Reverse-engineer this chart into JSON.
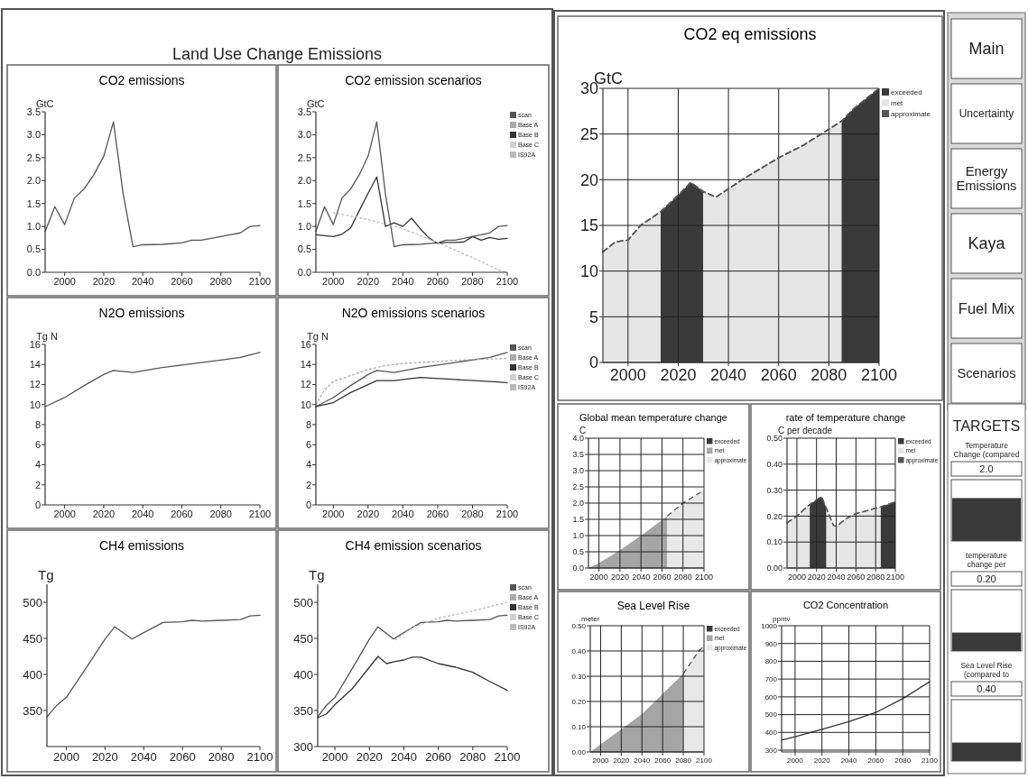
{
  "chart_data": [
    {
      "type": "other",
      "title": "Land Use Change Emissions"
    },
    {
      "type": "line",
      "title": "CO2 emissions",
      "ylabel": "GtC",
      "xlim": [
        1990,
        2100
      ],
      "xticks": [
        2000,
        2020,
        2040,
        2060,
        2080,
        2100
      ],
      "ylim": [
        0,
        3.5
      ],
      "yticks": [
        {
          "value": 0,
          "label": "0.0"
        },
        0.5,
        {
          "value": 1,
          "label": "1.0"
        },
        1.5,
        {
          "value": 2,
          "label": "2.0"
        },
        2.5,
        {
          "value": 3,
          "label": "3.0"
        },
        3.5
      ],
      "series": [
        {
          "color": "#555555",
          "x": [
            1990,
            1995,
            2000,
            2005,
            2010,
            2015,
            2020,
            2025,
            2030,
            2035,
            2040,
            2050,
            2060,
            2065,
            2070,
            2080,
            2090,
            2095,
            2100
          ],
          "values": [
            0.89,
            1.43,
            1.04,
            1.62,
            1.82,
            2.13,
            2.53,
            3.28,
            1.7,
            0.56,
            0.6,
            0.61,
            0.64,
            0.7,
            0.7,
            0.78,
            0.86,
            1.0,
            1.02
          ]
        }
      ]
    },
    {
      "type": "line",
      "title": "CO2 emission scenarios",
      "ylabel": "GtC",
      "legend": "top right",
      "xlim": [
        1990,
        2100
      ],
      "xticks": [
        2000,
        2020,
        2040,
        2060,
        2080,
        2100
      ],
      "ylim": [
        0,
        3.5
      ],
      "yticks": [
        {
          "value": 0,
          "label": "0.0"
        },
        0.5,
        {
          "value": 1,
          "label": "1.0"
        },
        1.5,
        {
          "value": 2,
          "label": "2.0"
        },
        2.5,
        {
          "value": 3,
          "label": "3.0"
        },
        3.5
      ],
      "series": [
        {
          "name": "scan",
          "color": "#555555",
          "x": [
            1990,
            1995,
            2000,
            2005,
            2010,
            2015,
            2020,
            2025,
            2030,
            2035,
            2040,
            2050,
            2060,
            2065,
            2070,
            2080,
            2090,
            2095,
            2100
          ],
          "values": [
            0.89,
            1.43,
            1.04,
            1.62,
            1.82,
            2.13,
            2.53,
            3.28,
            1.7,
            0.56,
            0.6,
            0.61,
            0.64,
            0.7,
            0.7,
            0.78,
            0.86,
            1.0,
            1.02
          ]
        },
        {
          "name": "Base A",
          "color": "#aaaaaa"
        },
        {
          "name": "Base B",
          "color": "#333333",
          "x": [
            1990,
            2000,
            2005,
            2010,
            2015,
            2020,
            2025,
            2030,
            2035,
            2040,
            2045,
            2050,
            2055,
            2060,
            2065,
            2070,
            2075,
            2080,
            2085,
            2090,
            2095,
            2100
          ],
          "values": [
            0.82,
            0.78,
            0.83,
            0.97,
            1.35,
            1.72,
            2.08,
            1.0,
            1.08,
            1.0,
            1.18,
            0.95,
            0.75,
            0.63,
            0.65,
            0.65,
            0.66,
            0.78,
            0.7,
            0.76,
            0.72,
            0.74
          ]
        },
        {
          "name": "Base C",
          "color": "#d0d0d0"
        },
        {
          "name": "IS92A",
          "color": "#bbbbbb",
          "line_style": "dotted",
          "x": [
            2000,
            2020,
            2040,
            2060,
            2080,
            2095,
            2100
          ],
          "values": [
            1.3,
            1.15,
            0.95,
            0.65,
            0.32,
            0.05,
            0.0
          ]
        }
      ]
    },
    {
      "type": "line",
      "title": "N2O emissions",
      "ylabel": "Tg N",
      "xlim": [
        1990,
        2100
      ],
      "xticks": [
        2000,
        2020,
        2040,
        2060,
        2080,
        2100
      ],
      "ylim": [
        0,
        16
      ],
      "yticks": [
        0,
        2,
        4,
        6,
        8,
        10,
        12,
        14,
        16
      ],
      "series": [
        {
          "color": "#555555",
          "x": [
            1990,
            2000,
            2010,
            2020,
            2025,
            2035,
            2050,
            2070,
            2090,
            2100
          ],
          "values": [
            9.8,
            10.7,
            11.9,
            13.0,
            13.4,
            13.2,
            13.7,
            14.2,
            14.7,
            15.2
          ]
        }
      ]
    },
    {
      "type": "line",
      "title": "N2O emissions scenarios",
      "ylabel": "Tg N",
      "legend": "top right",
      "xlim": [
        1990,
        2100
      ],
      "xticks": [
        2000,
        2020,
        2040,
        2060,
        2080,
        2100
      ],
      "ylim": [
        0,
        16
      ],
      "yticks": [
        0,
        2,
        4,
        6,
        8,
        10,
        12,
        14,
        16
      ],
      "series": [
        {
          "name": "scan",
          "color": "#555555",
          "x": [
            1990,
            2000,
            2010,
            2020,
            2025,
            2035,
            2050,
            2070,
            2090,
            2100
          ],
          "values": [
            9.8,
            10.7,
            11.9,
            13.0,
            13.4,
            13.2,
            13.7,
            14.2,
            14.7,
            15.2
          ]
        },
        {
          "name": "Base A",
          "color": "#aaaaaa",
          "line_style": "dotted",
          "x": [
            1990,
            1995,
            2000,
            2010,
            2020,
            2030,
            2040,
            2060,
            2080,
            2100
          ],
          "values": [
            10.0,
            11.5,
            12.3,
            12.9,
            13.5,
            13.9,
            14.1,
            14.3,
            14.5,
            14.6
          ]
        },
        {
          "name": "Base B",
          "color": "#333333",
          "x": [
            1990,
            2000,
            2010,
            2025,
            2035,
            2050,
            2070,
            2090,
            2100
          ],
          "values": [
            9.8,
            10.2,
            11.2,
            12.4,
            12.4,
            12.7,
            12.5,
            12.3,
            12.2
          ]
        },
        {
          "name": "Base C",
          "color": "#d0d0d0"
        },
        {
          "name": "IS92A",
          "color": "#bbbbbb"
        }
      ]
    },
    {
      "type": "line",
      "title": "CH4 emissions",
      "ylabel": "Tg",
      "xlim": [
        1990,
        2100
      ],
      "xticks": [
        2000,
        2020,
        2040,
        2060,
        2080,
        2100
      ],
      "ylim": [
        300,
        525
      ],
      "yticks": [
        350,
        400,
        450,
        500
      ],
      "series": [
        {
          "color": "#555555",
          "x": [
            1990,
            1995,
            2000,
            2010,
            2020,
            2025,
            2034,
            2040,
            2050,
            2060,
            2065,
            2070,
            2080,
            2090,
            2095,
            2100
          ],
          "values": [
            341,
            357,
            368,
            408,
            449,
            466,
            449,
            458,
            472,
            473,
            475,
            474,
            475,
            476,
            481,
            482
          ]
        }
      ]
    },
    {
      "type": "line",
      "title": "CH4 emission scenarios",
      "ylabel": "Tg",
      "legend": "top right",
      "xlim": [
        1990,
        2100
      ],
      "xticks": [
        2000,
        2020,
        2040,
        2060,
        2080,
        2100
      ],
      "ylim": [
        300,
        525
      ],
      "yticks": [
        300,
        350,
        400,
        450,
        500
      ],
      "series": [
        {
          "name": "scan",
          "color": "#555555",
          "x": [
            1990,
            1995,
            2000,
            2010,
            2020,
            2025,
            2034,
            2040,
            2050,
            2060,
            2065,
            2070,
            2080,
            2090,
            2095,
            2100
          ],
          "values": [
            341,
            357,
            368,
            408,
            449,
            466,
            449,
            458,
            472,
            473,
            475,
            474,
            475,
            476,
            481,
            482
          ]
        },
        {
          "name": "Base A",
          "color": "#aaaaaa"
        },
        {
          "name": "Base B",
          "color": "#333333",
          "x": [
            1990,
            1995,
            2000,
            2010,
            2020,
            2025,
            2030,
            2035,
            2040,
            2045,
            2050,
            2060,
            2070,
            2080,
            2090,
            2100
          ],
          "values": [
            340,
            345,
            358,
            380,
            410,
            425,
            415,
            418,
            420,
            424,
            424,
            415,
            410,
            403,
            390,
            378
          ]
        },
        {
          "name": "Base C",
          "color": "#d0d0d0"
        },
        {
          "name": "IS92A",
          "color": "#bbbbbb",
          "line_style": "dotted",
          "x": [
            2035,
            2045,
            2060,
            2080,
            2100
          ],
          "values": [
            448,
            465,
            478,
            488,
            500
          ]
        }
      ]
    },
    {
      "type": "area",
      "title": "CO2 eq emissions",
      "ylabel": "GtC",
      "legend": "top right",
      "grid": true,
      "xlim": [
        1990,
        2100
      ],
      "xticks": [
        2000,
        2020,
        2040,
        2060,
        2080,
        2100
      ],
      "ylim": [
        0,
        30
      ],
      "yticks": [
        0,
        5,
        10,
        15,
        20,
        25,
        30
      ],
      "series": [
        {
          "name": "exceeded",
          "color": "#3a3a3a",
          "x": [
            2013,
            2020,
            2025,
            2030,
            2060,
            2085,
            2090,
            2100
          ],
          "values": [
            16.5,
            18.3,
            19.7,
            18.7,
            null,
            26.4,
            27.8,
            30
          ]
        },
        {
          "name": "met",
          "color": "#e6e6e6",
          "x": [
            1990,
            1995,
            2000,
            2005,
            2013,
            2020,
            2030,
            2035,
            2046,
            2060,
            2070,
            2085
          ],
          "values": [
            12.1,
            13.2,
            13.4,
            15.0,
            16.5,
            null,
            18.7,
            18.1,
            20.1,
            22.4,
            23.8,
            26.4
          ]
        },
        {
          "name": "approximate",
          "type": "line",
          "line_style": "dashed",
          "color": "#555555",
          "x": [
            1990,
            1995,
            2000,
            2005,
            2013,
            2020,
            2025,
            2030,
            2035,
            2046,
            2060,
            2070,
            2085,
            2090,
            2100
          ],
          "values": [
            12.1,
            13.2,
            13.4,
            15.0,
            16.5,
            18.3,
            19.7,
            18.7,
            18.1,
            20.1,
            22.4,
            23.8,
            26.4,
            27.8,
            30
          ]
        }
      ]
    },
    {
      "type": "area",
      "title": "Global mean temperature change",
      "ylabel": "C",
      "legend": "top right",
      "grid": true,
      "xlim": [
        1990,
        2100
      ],
      "xticks": [
        2000,
        2020,
        2040,
        2060,
        2080,
        2100
      ],
      "ylim": [
        0,
        4
      ],
      "yticks": [
        {
          "value": 0,
          "label": "0.0"
        },
        0.5,
        {
          "value": 1,
          "label": "1.0"
        },
        1.5,
        {
          "value": 2,
          "label": "2.0"
        },
        2.5,
        {
          "value": 3,
          "label": "3.0"
        },
        3.5,
        {
          "value": 4,
          "label": "4.0"
        }
      ],
      "series": [
        {
          "name": "exceeded",
          "color": "#3a3a3a"
        },
        {
          "name": "met",
          "color": "#a5a5a5",
          "x": [
            1990,
            2000,
            2020,
            2040,
            2065
          ],
          "values": [
            0,
            0.15,
            0.55,
            1.0,
            1.6
          ]
        },
        {
          "name": "approximate",
          "line_style": "dashed",
          "color": "#e8e8e8",
          "x": [
            2065,
            2080,
            2100
          ],
          "values": [
            1.6,
            2.0,
            2.4
          ]
        }
      ]
    },
    {
      "type": "area",
      "title": "rate of temperature change",
      "ylabel": "C per decade",
      "legend": "top right",
      "grid": true,
      "xlim": [
        1990,
        2100
      ],
      "xticks": [
        2000,
        2020,
        2040,
        2060,
        2080,
        2100
      ],
      "ylim": [
        0,
        0.5
      ],
      "yticks": [
        {
          "value": 0,
          "label": "0.00"
        },
        {
          "value": 0.1,
          "label": "0.10"
        },
        {
          "value": 0.2,
          "label": "0.20"
        },
        {
          "value": 0.3,
          "label": "0.30"
        },
        {
          "value": 0.4,
          "label": "0.40"
        },
        {
          "value": 0.5,
          "label": "0.50"
        }
      ],
      "series": [
        {
          "name": "exceeded",
          "color": "#3a3a3a",
          "x": [
            2013,
            2025,
            2030,
            2060,
            2085,
            2100
          ],
          "values": [
            0.245,
            0.275,
            0.23,
            null,
            0.235,
            0.255
          ]
        },
        {
          "name": "met",
          "color": "#e6e6e6",
          "x": [
            1990,
            2000,
            2013,
            2020,
            2030,
            2037,
            2040,
            2050,
            2060,
            2085
          ],
          "values": [
            0.174,
            0.2,
            0.245,
            null,
            0.23,
            0.165,
            0.16,
            0.19,
            0.21,
            0.235
          ]
        },
        {
          "name": "approximate",
          "type": "line",
          "line_style": "dashed",
          "color": "#555555",
          "x": [
            1990,
            2000,
            2013,
            2025,
            2030,
            2037,
            2040,
            2050,
            2060,
            2085,
            2100
          ],
          "values": [
            0.174,
            0.2,
            0.245,
            0.275,
            0.23,
            0.165,
            0.16,
            0.19,
            0.21,
            0.235,
            0.255
          ]
        }
      ]
    },
    {
      "type": "area",
      "title": "Sea Level Rise",
      "ylabel": "meter",
      "legend": "top right",
      "grid": true,
      "xlim": [
        1990,
        2100
      ],
      "xticks": [
        2000,
        2020,
        2040,
        2060,
        2080,
        2100
      ],
      "ylim": [
        0,
        0.5
      ],
      "yticks": [
        {
          "value": 0,
          "label": "0.00"
        },
        {
          "value": 0.1,
          "label": "0.10"
        },
        {
          "value": 0.2,
          "label": "0.20"
        },
        {
          "value": 0.3,
          "label": "0.30"
        },
        {
          "value": 0.4,
          "label": "0.40"
        },
        {
          "value": 0.5,
          "label": "0.50"
        }
      ],
      "series": [
        {
          "name": "exceeded",
          "color": "#3a3a3a"
        },
        {
          "name": "met",
          "color": "#a5a5a5",
          "x": [
            1990,
            2040,
            2080
          ],
          "values": [
            0,
            0.15,
            0.31
          ]
        },
        {
          "name": "approximate",
          "line_style": "dashed",
          "color": "#e8e8e8",
          "x": [
            2080,
            2095,
            2100
          ],
          "values": [
            0.31,
            0.4,
            0.42
          ]
        }
      ]
    },
    {
      "type": "line",
      "title": "CO2 Concentration",
      "ylabel": "ppmv",
      "grid": true,
      "xlim": [
        1990,
        2100
      ],
      "xticks": [
        2000,
        2020,
        2040,
        2060,
        2080,
        2100
      ],
      "ylim": [
        290,
        1000
      ],
      "yticks": [
        300,
        400,
        500,
        600,
        700,
        800,
        900,
        1000
      ],
      "series": [
        {
          "color": "#333333",
          "x": [
            1990,
            2000,
            2020,
            2040,
            2060,
            2080,
            2100
          ],
          "values": [
            357,
            375,
            417,
            460,
            512,
            590,
            685
          ]
        }
      ]
    },
    {
      "type": "other",
      "annotations": [
        "Main",
        "Uncertainty",
        "Energy Emissions",
        "Kaya",
        "Fuel Mix",
        "Scenarios"
      ]
    },
    {
      "type": "other",
      "title": "TARGETS",
      "annotations": [
        "Temperature Change (compared",
        "2.0",
        "temperature change per",
        "0.20",
        "Sea Level Rise (compared to",
        "0.40"
      ]
    }
  ]
}
